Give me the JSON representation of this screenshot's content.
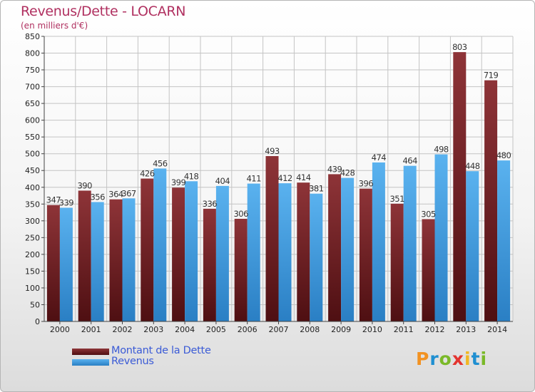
{
  "header": {
    "title": "Revenus/Dette - LOCARN",
    "subtitle": "(en milliers d'€)"
  },
  "chart_data": {
    "type": "bar",
    "title": "Revenus/Dette - LOCARN",
    "subtitle": "(en milliers d'€)",
    "categories": [
      "2000",
      "2001",
      "2002",
      "2003",
      "2004",
      "2005",
      "2006",
      "2007",
      "2008",
      "2009",
      "2010",
      "2011",
      "2012",
      "2013",
      "2014"
    ],
    "series": [
      {
        "name": "Montant de la Dette",
        "color": "#7a2a2e",
        "values": [
          347,
          390,
          364,
          426,
          399,
          336,
          306,
          493,
          414,
          439,
          396,
          351,
          305,
          803,
          719
        ]
      },
      {
        "name": "Revenus",
        "color": "#4aa3e6",
        "values": [
          339,
          356,
          367,
          456,
          418,
          404,
          411,
          412,
          381,
          428,
          474,
          464,
          498,
          448,
          480
        ]
      }
    ],
    "yticks": [
      0,
      50,
      100,
      150,
      200,
      250,
      300,
      350,
      400,
      450,
      500,
      550,
      600,
      650,
      700,
      750,
      800,
      850
    ],
    "ylim": [
      0,
      850
    ],
    "grid": true,
    "legend_position": "bottom-left"
  },
  "legend": {
    "items": [
      {
        "label": "Montant de la Dette",
        "color": "#7a2a2e"
      },
      {
        "label": "Revenus",
        "color": "#4aa3e6"
      }
    ]
  },
  "logo": {
    "text": "Proxiti",
    "letters": [
      "P",
      "r",
      "o",
      "x",
      "i",
      "t",
      "i"
    ],
    "colors": [
      "#f29222",
      "#1f8fd1",
      "#7ab928",
      "#e3342f",
      "#f2b722",
      "#1f8fd1",
      "#7ab928"
    ]
  }
}
